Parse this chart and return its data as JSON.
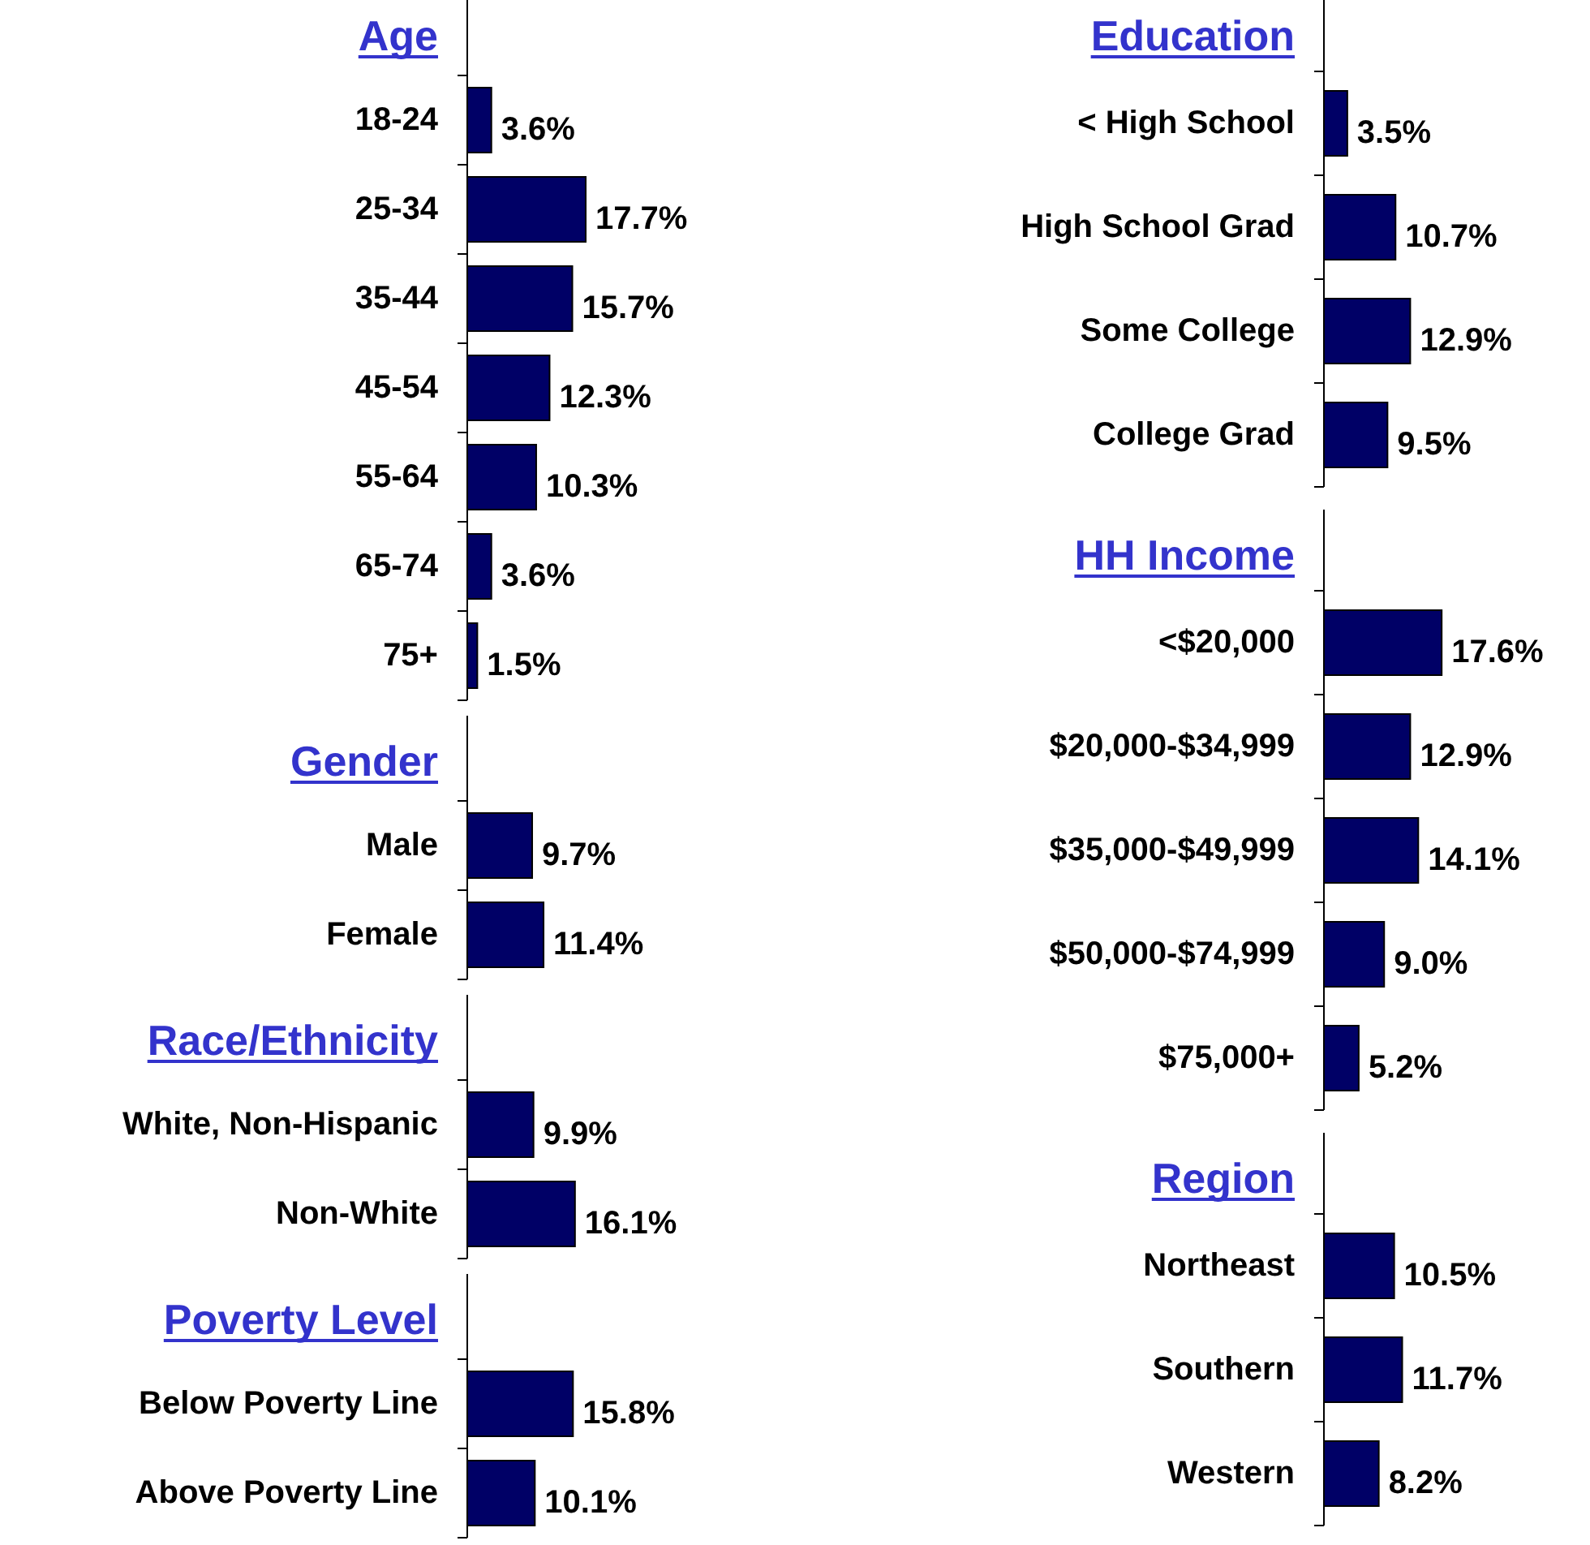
{
  "chart_data": [
    {
      "type": "bar",
      "orientation": "horizontal",
      "title": "Age",
      "categories": [
        "18-24",
        "25-34",
        "35-44",
        "45-54",
        "55-64",
        "65-74",
        "75+"
      ],
      "values": [
        3.6,
        17.7,
        15.7,
        12.3,
        10.3,
        3.6,
        1.5
      ],
      "value_labels": [
        "3.6%",
        "17.7%",
        "15.7%",
        "12.3%",
        "10.3%",
        "3.6%",
        "1.5%"
      ],
      "color": "#000066"
    },
    {
      "type": "bar",
      "orientation": "horizontal",
      "title": "Gender",
      "categories": [
        "Male",
        "Female"
      ],
      "values": [
        9.7,
        11.4
      ],
      "value_labels": [
        "9.7%",
        "11.4%"
      ],
      "color": "#000066"
    },
    {
      "type": "bar",
      "orientation": "horizontal",
      "title": "Race/Ethnicity",
      "categories": [
        "White, Non-Hispanic",
        "Non-White"
      ],
      "values": [
        9.9,
        16.1
      ],
      "value_labels": [
        "9.9%",
        "16.1%"
      ],
      "color": "#000066"
    },
    {
      "type": "bar",
      "orientation": "horizontal",
      "title": "Poverty Level",
      "categories": [
        "Below Poverty Line",
        "Above Poverty Line"
      ],
      "values": [
        15.8,
        10.1
      ],
      "value_labels": [
        "15.8%",
        "10.1%"
      ],
      "color": "#000066"
    },
    {
      "type": "bar",
      "orientation": "horizontal",
      "title": "Education",
      "categories": [
        "< High School",
        "High School Grad",
        "Some College",
        "College Grad"
      ],
      "values": [
        3.5,
        10.7,
        12.9,
        9.5
      ],
      "value_labels": [
        "3.5%",
        "10.7%",
        "12.9%",
        "9.5%"
      ],
      "color": "#000066"
    },
    {
      "type": "bar",
      "orientation": "horizontal",
      "title": "HH Income",
      "categories": [
        "<$20,000",
        "$20,000-$34,999",
        "$35,000-$49,999",
        "$50,000-$74,999",
        "$75,000+"
      ],
      "values": [
        17.6,
        12.9,
        14.1,
        9.0,
        5.2
      ],
      "value_labels": [
        "17.6%",
        "12.9%",
        "14.1%",
        "9.0%",
        "5.2%"
      ],
      "color": "#000066"
    },
    {
      "type": "bar",
      "orientation": "horizontal",
      "title": "Region",
      "categories": [
        "Northeast",
        "Southern",
        "Western"
      ],
      "values": [
        10.5,
        11.7,
        8.2
      ],
      "value_labels": [
        "10.5%",
        "11.7%",
        "8.2%"
      ],
      "color": "#000066"
    }
  ]
}
